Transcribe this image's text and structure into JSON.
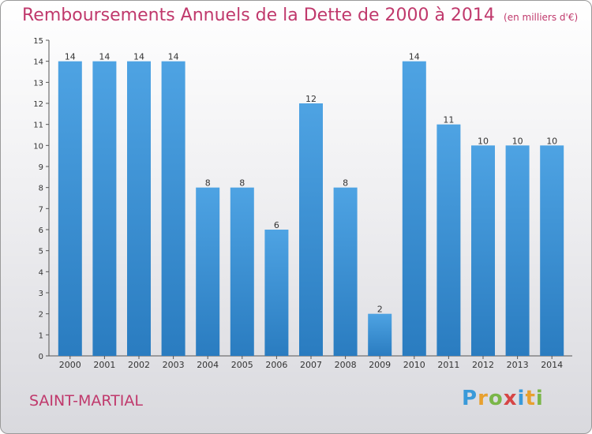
{
  "title": "Remboursements Annuels de la Dette de 2000 à 2014",
  "unit": "(en milliers d'€)",
  "commune": "SAINT-MARTIAL",
  "logo": {
    "letters": [
      "P",
      "r",
      "o",
      "x",
      "i",
      "t",
      "i"
    ],
    "colors": [
      "#3a9ad9",
      "#e8a02e",
      "#7ab648",
      "#d64545",
      "#3a9ad9",
      "#e8a02e",
      "#7ab648"
    ]
  },
  "colors": {
    "bar": "#4ea3e3",
    "bar_dark": "#2a7cc0",
    "title": "#c0396c"
  },
  "chart_data": {
    "type": "bar",
    "title": "Remboursements Annuels de la Dette de 2000 à 2014",
    "xlabel": "",
    "ylabel": "",
    "categories": [
      "2000",
      "2001",
      "2002",
      "2003",
      "2004",
      "2005",
      "2006",
      "2007",
      "2008",
      "2009",
      "2010",
      "2011",
      "2012",
      "2013",
      "2014"
    ],
    "values": [
      14,
      14,
      14,
      14,
      8,
      8,
      6,
      12,
      8,
      2,
      14,
      11,
      10,
      10,
      10
    ],
    "ylim": [
      0,
      15
    ],
    "yticks": [
      "0",
      "1",
      "2",
      "3",
      "4",
      "5",
      "6",
      "7",
      "8",
      "9",
      "10",
      "11",
      "12",
      "13",
      "14",
      "15"
    ],
    "grid": false,
    "data_labels": true
  }
}
